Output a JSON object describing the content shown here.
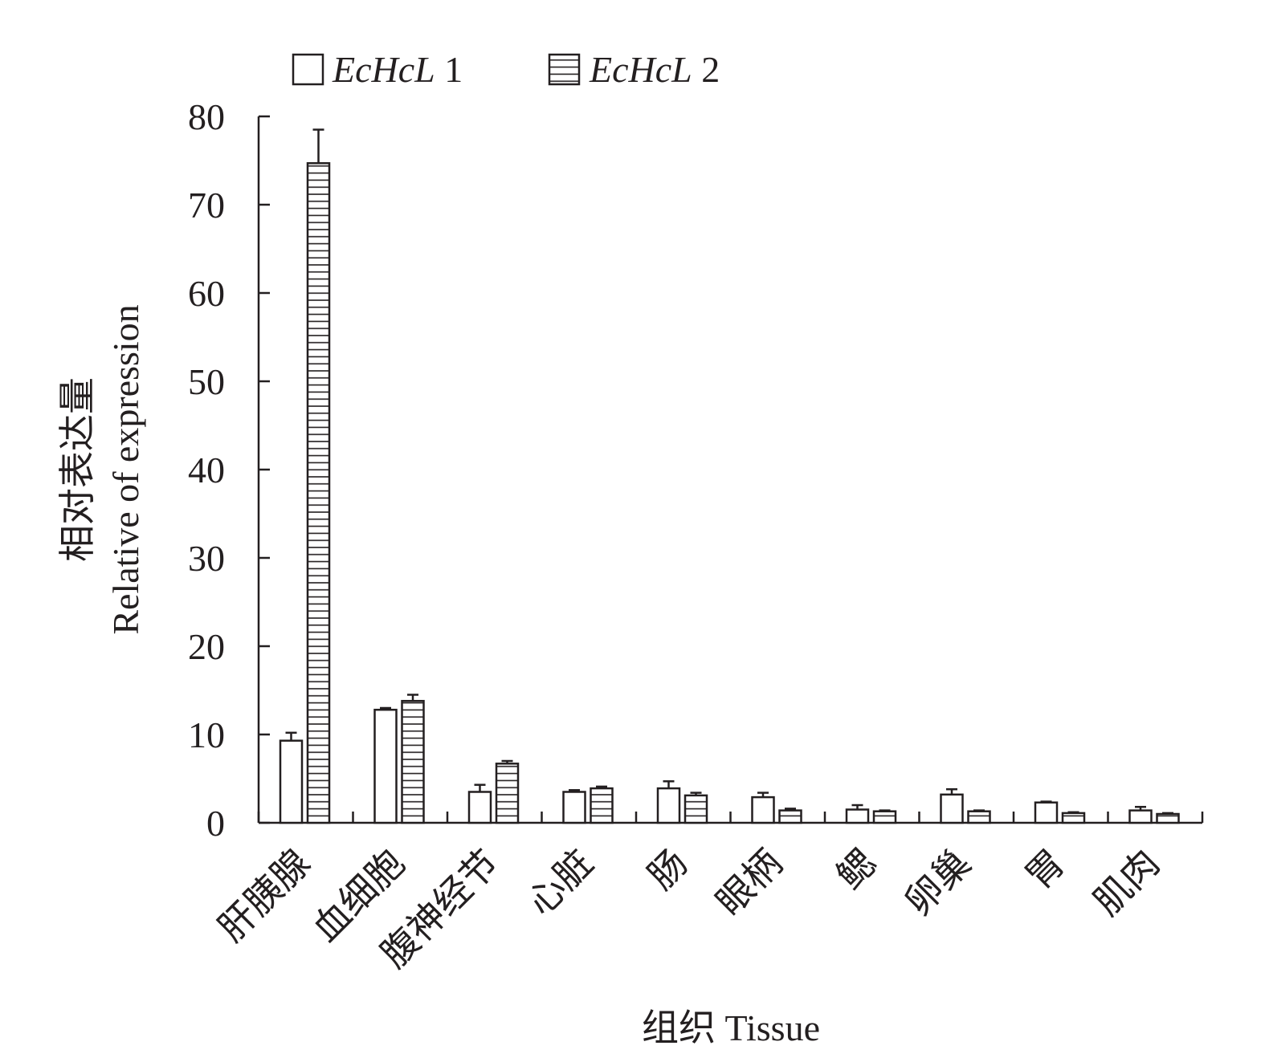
{
  "chart_data": {
    "type": "bar",
    "xlabel": "组织 Tissue",
    "ylabel_cn": "相对表达量",
    "ylabel_en": "Relative of expression",
    "ylim": [
      0,
      80
    ],
    "yticks": [
      0,
      10,
      20,
      30,
      40,
      50,
      60,
      70,
      80
    ],
    "grid": false,
    "legend_position": "top",
    "categories": [
      "肝胰腺",
      "血细胞",
      "腹神经节",
      "心脏",
      "肠",
      "眼柄",
      "鳃",
      "卵巢",
      "胃",
      "肌肉"
    ],
    "series": [
      {
        "name_italic": "EcHcL",
        "name_suffix": " 1",
        "pattern": "open",
        "values": [
          9.3,
          12.8,
          3.5,
          3.5,
          3.9,
          2.9,
          1.5,
          3.2,
          2.3,
          1.4
        ],
        "errors": [
          0.9,
          0.2,
          0.8,
          0.2,
          0.8,
          0.5,
          0.5,
          0.6,
          0.1,
          0.4
        ]
      },
      {
        "name_italic": "EcHcL",
        "name_suffix": " 2",
        "pattern": "horizontal-hatch",
        "values": [
          74.7,
          13.8,
          6.7,
          3.9,
          3.1,
          1.4,
          1.3,
          1.3,
          1.1,
          1.0
        ],
        "errors": [
          3.8,
          0.7,
          0.3,
          0.2,
          0.3,
          0.2,
          0.1,
          0.1,
          0.1,
          0.1
        ]
      }
    ]
  },
  "colors": {
    "ink": "#231f20",
    "background": "#ffffff"
  }
}
